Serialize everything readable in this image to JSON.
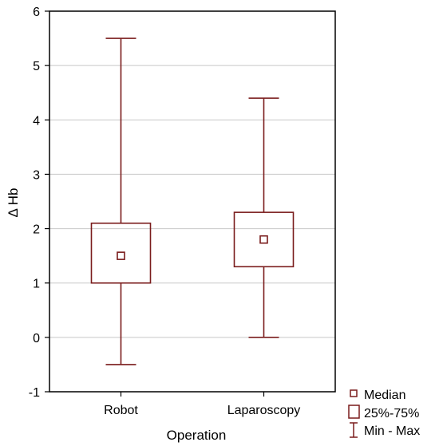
{
  "chart_data": {
    "type": "box",
    "categories": [
      "Robot",
      "Laparoscopy"
    ],
    "series": [
      {
        "stats": [
          {
            "category": "Robot",
            "min": -0.5,
            "q1": 1.0,
            "median": 1.5,
            "q3": 2.1,
            "max": 5.5
          },
          {
            "category": "Laparoscopy",
            "min": 0.0,
            "q1": 1.3,
            "median": 1.8,
            "q3": 2.3,
            "max": 4.4
          }
        ]
      }
    ],
    "xlabel": "Operation",
    "ylabel": "Δ Hb",
    "ylim": [
      -1,
      6
    ],
    "yticks": [
      -1,
      0,
      1,
      2,
      3,
      4,
      5,
      6
    ],
    "grid": true,
    "legend": {
      "placement": "bottom-right",
      "items": [
        "Median",
        "25%-75%",
        "Min - Max"
      ]
    },
    "colors": {
      "box": "#7a1c1c",
      "grid": "#c8c8c8",
      "axis": "#000000"
    }
  }
}
